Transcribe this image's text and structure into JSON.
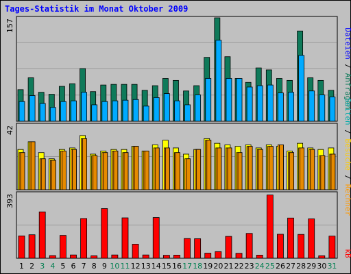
{
  "title": "Tages-Statistik im Monat Oktober 2009",
  "colors": {
    "anfragen": "#0f7a5a",
    "dateien": "#00aaff",
    "seiten": "#ffff00",
    "besuche": "#ff9900",
    "rechner": "#ff9900",
    "kb": "#ff0000",
    "weekend_label": "#007f50",
    "weekday_label": "#000000"
  },
  "chart_data": [
    {
      "type": "bar",
      "panel": "top",
      "ymax_label": "157",
      "ylim": [
        0,
        157
      ],
      "categories": [
        "1",
        "2",
        "3",
        "4",
        "5",
        "6",
        "7",
        "8",
        "9",
        "10",
        "11",
        "12",
        "13",
        "14",
        "15",
        "16",
        "17",
        "18",
        "19",
        "20",
        "21",
        "22",
        "23",
        "24",
        "25",
        "26",
        "27",
        "28",
        "29",
        "30",
        "31"
      ],
      "series": [
        {
          "name": "Anfragen",
          "values": [
            48,
            66,
            44,
            41,
            53,
            57,
            80,
            45,
            55,
            56,
            56,
            56,
            47,
            54,
            65,
            62,
            46,
            54,
            97,
            157,
            98,
            65,
            59,
            81,
            78,
            65,
            62,
            137,
            66,
            62,
            47
          ]
        },
        {
          "name": "Dateien",
          "values": [
            30,
            39,
            27,
            21,
            30,
            31,
            44,
            25,
            30,
            31,
            32,
            33,
            23,
            36,
            42,
            31,
            25,
            40,
            65,
            123,
            65,
            65,
            52,
            54,
            55,
            43,
            44,
            100,
            46,
            40,
            37
          ]
        }
      ],
      "right_labels": [
        "Anfragen",
        "Dateien"
      ]
    },
    {
      "type": "bar",
      "panel": "middle",
      "ymax_label": "42",
      "ylim": [
        0,
        42
      ],
      "categories": [
        "1",
        "2",
        "3",
        "4",
        "5",
        "6",
        "7",
        "8",
        "9",
        "10",
        "11",
        "12",
        "13",
        "14",
        "15",
        "16",
        "17",
        "18",
        "19",
        "20",
        "21",
        "22",
        "23",
        "24",
        "25",
        "26",
        "27",
        "28",
        "29",
        "30",
        "31"
      ],
      "series": [
        {
          "name": "Seiten",
          "values": [
            26,
            31,
            24,
            20,
            26,
            27,
            35,
            23,
            25,
            26,
            26,
            28,
            25,
            29,
            32,
            27,
            23,
            26,
            33,
            30,
            29,
            28,
            29,
            27,
            29,
            28,
            25,
            30,
            27,
            26,
            27
          ]
        },
        {
          "name": "Besuche",
          "values": [
            24,
            31,
            20,
            19,
            25,
            26,
            33,
            22,
            24,
            25,
            24,
            28,
            25,
            27,
            27,
            24,
            20,
            26,
            32,
            27,
            27,
            24,
            28,
            26,
            28,
            29,
            24,
            27,
            26,
            22,
            23
          ]
        },
        {
          "name": "Rechner",
          "values": [
            24,
            31,
            20,
            19,
            25,
            26,
            33,
            22,
            24,
            25,
            24,
            28,
            25,
            27,
            27,
            24,
            20,
            26,
            32,
            27,
            27,
            24,
            28,
            26,
            28,
            29,
            24,
            27,
            26,
            22,
            23
          ]
        }
      ],
      "right_labels": [
        "Seiten",
        "Besuche",
        "Rechner"
      ]
    },
    {
      "type": "bar",
      "panel": "bottom",
      "ymax_label": "393",
      "ylim": [
        0,
        393
      ],
      "categories": [
        "1",
        "2",
        "3",
        "4",
        "5",
        "6",
        "7",
        "8",
        "9",
        "10",
        "11",
        "12",
        "13",
        "14",
        "15",
        "16",
        "17",
        "18",
        "19",
        "20",
        "21",
        "22",
        "23",
        "24",
        "25",
        "26",
        "27",
        "28",
        "29",
        "30",
        "31"
      ],
      "series": [
        {
          "name": "kB",
          "values": [
            135,
            142,
            280,
            16,
            138,
            20,
            240,
            15,
            300,
            20,
            244,
            85,
            20,
            246,
            18,
            19,
            119,
            118,
            31,
            40,
            132,
            30,
            150,
            19,
            382,
            145,
            243,
            144,
            238,
            15,
            134
          ]
        }
      ],
      "right_labels": [
        "kB"
      ]
    }
  ],
  "weekend_days": [
    3,
    4,
    10,
    11,
    17,
    18,
    24,
    25,
    31
  ],
  "slash": "/"
}
